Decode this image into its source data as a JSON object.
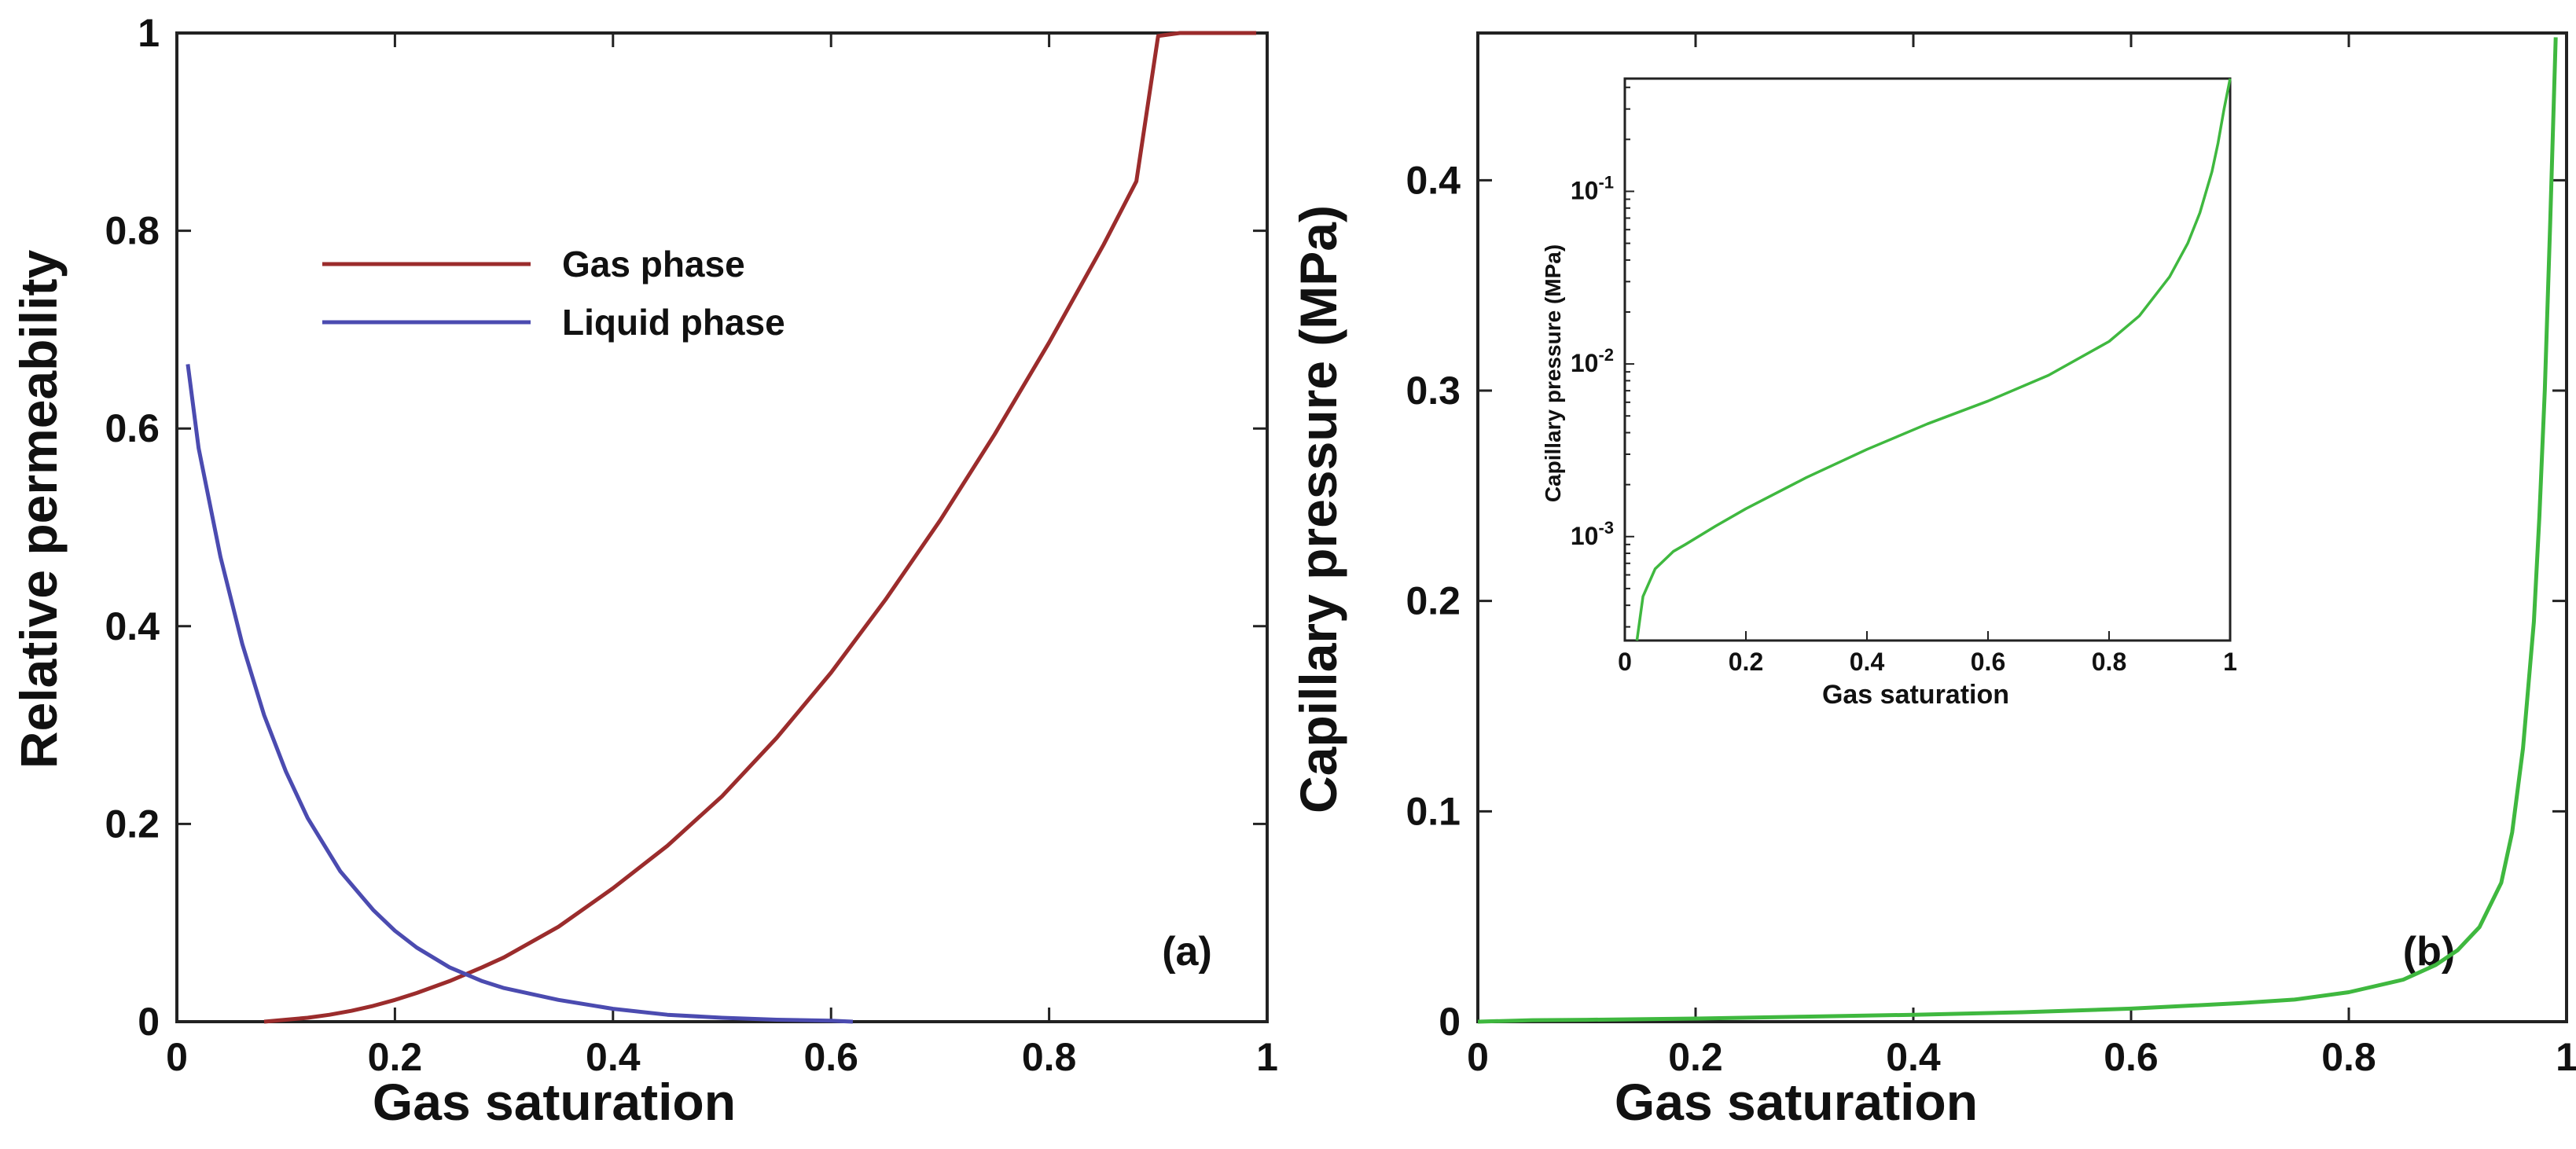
{
  "chart_data": [
    {
      "type": "line",
      "panel_label": "(a)",
      "xlabel": "Gas saturation",
      "ylabel": "Relative permeability",
      "xlim": [
        0,
        1
      ],
      "ylim": [
        0,
        1
      ],
      "x_ticks": [
        "0",
        "0.2",
        "0.4",
        "0.6",
        "0.8",
        "1"
      ],
      "y_ticks": [
        "0",
        "0.2",
        "0.4",
        "0.6",
        "0.8",
        "1"
      ],
      "legend_position": "upper-left",
      "series": [
        {
          "name": "Gas phase",
          "color": "#9b2c2c",
          "x": [
            0.08,
            0.1,
            0.12,
            0.14,
            0.16,
            0.18,
            0.2,
            0.22,
            0.25,
            0.28,
            0.3,
            0.35,
            0.4,
            0.45,
            0.5,
            0.55,
            0.6,
            0.65,
            0.7,
            0.75,
            0.8,
            0.85,
            0.88,
            0.9,
            0.92,
            0.95,
            0.99
          ],
          "y": [
            0.0,
            0.002,
            0.004,
            0.007,
            0.011,
            0.016,
            0.022,
            0.029,
            0.041,
            0.055,
            0.065,
            0.096,
            0.135,
            0.178,
            0.228,
            0.287,
            0.353,
            0.427,
            0.507,
            0.594,
            0.687,
            0.786,
            0.85,
            0.997,
            1.0,
            1.0,
            1.0
          ]
        },
        {
          "name": "Liquid phase",
          "color": "#4b4bb0",
          "x": [
            0.01,
            0.02,
            0.04,
            0.06,
            0.08,
            0.1,
            0.12,
            0.15,
            0.18,
            0.2,
            0.22,
            0.25,
            0.28,
            0.3,
            0.35,
            0.4,
            0.45,
            0.5,
            0.55,
            0.6,
            0.62
          ],
          "y": [
            0.665,
            0.58,
            0.47,
            0.382,
            0.31,
            0.253,
            0.206,
            0.152,
            0.113,
            0.092,
            0.075,
            0.055,
            0.041,
            0.034,
            0.022,
            0.013,
            0.007,
            0.004,
            0.002,
            0.001,
            0.0
          ]
        }
      ]
    },
    {
      "type": "line",
      "panel_label": "(b)",
      "xlabel": "Gas saturation",
      "ylabel": "Capillary pressure (MPa)",
      "xlim": [
        0,
        1
      ],
      "ylim": [
        0,
        0.47
      ],
      "x_ticks": [
        "0",
        "0.2",
        "0.4",
        "0.6",
        "0.8",
        "1"
      ],
      "y_ticks": [
        "0",
        "0.1",
        "0.2",
        "0.3",
        "0.4"
      ],
      "series": [
        {
          "name": "Capillary pressure",
          "color": "#3fb83f",
          "x": [
            0.0,
            0.05,
            0.1,
            0.2,
            0.3,
            0.4,
            0.5,
            0.6,
            0.7,
            0.75,
            0.8,
            0.85,
            0.88,
            0.9,
            0.92,
            0.94,
            0.95,
            0.96,
            0.97,
            0.975,
            0.98,
            0.985,
            0.99
          ],
          "y": [
            0.0,
            0.0007,
            0.0009,
            0.0015,
            0.0024,
            0.0033,
            0.0045,
            0.0062,
            0.0088,
            0.0105,
            0.014,
            0.02,
            0.027,
            0.034,
            0.045,
            0.066,
            0.09,
            0.13,
            0.19,
            0.24,
            0.3,
            0.38,
            0.468
          ]
        }
      ],
      "inset": {
        "type": "line",
        "xlabel": "Gas saturation",
        "ylabel": "Capillary pressure (MPa)",
        "yscale": "log",
        "xlim": [
          0,
          1
        ],
        "ylim": [
          0.00025,
          0.45
        ],
        "x_ticks": [
          "0",
          "0.2",
          "0.4",
          "0.6",
          "0.8",
          "1"
        ],
        "y_ticks": [
          {
            "base": "10",
            "exp": "-3",
            "value": 0.001
          },
          {
            "base": "10",
            "exp": "-2",
            "value": 0.01
          },
          {
            "base": "10",
            "exp": "-1",
            "value": 0.1
          }
        ],
        "series": [
          {
            "name": "Capillary pressure (log)",
            "color": "#3fb83f",
            "x": [
              0.02,
              0.03,
              0.05,
              0.08,
              0.1,
              0.15,
              0.2,
              0.3,
              0.4,
              0.5,
              0.6,
              0.7,
              0.8,
              0.85,
              0.9,
              0.93,
              0.95,
              0.97,
              0.98,
              0.99,
              1.0
            ],
            "y": [
              0.00025,
              0.00045,
              0.00065,
              0.00082,
              0.0009,
              0.00115,
              0.00145,
              0.0022,
              0.0032,
              0.0045,
              0.0061,
              0.0086,
              0.0135,
              0.019,
              0.032,
              0.05,
              0.075,
              0.13,
              0.19,
              0.3,
              0.45
            ]
          }
        ]
      }
    }
  ]
}
